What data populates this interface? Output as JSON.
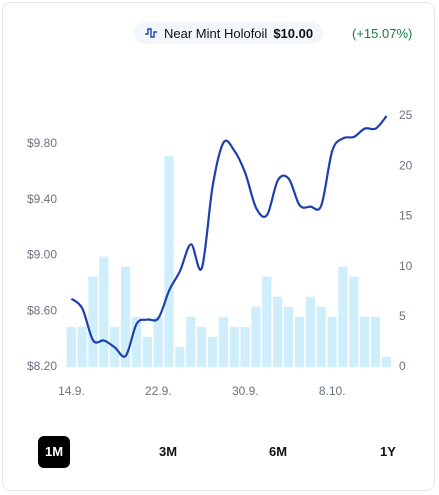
{
  "chart_data": {
    "type": "bar-line",
    "title": "Near Mint Holofoil",
    "price_label": "$10.00",
    "change_label": "(+15.07%)",
    "categories": [
      "14.9.",
      null,
      null,
      null,
      null,
      null,
      null,
      null,
      "22.9.",
      null,
      null,
      null,
      null,
      null,
      null,
      null,
      "30.9.",
      null,
      null,
      null,
      null,
      null,
      null,
      null,
      "8.10.",
      null,
      null,
      null,
      null,
      null
    ],
    "series": [
      {
        "name": "Near Mint Holofoil",
        "type": "line",
        "color": "#1e40af",
        "values": [
          8.69,
          8.62,
          8.39,
          8.39,
          8.34,
          8.28,
          8.51,
          8.54,
          8.55,
          8.75,
          8.89,
          9.08,
          8.91,
          9.5,
          9.81,
          9.75,
          9.59,
          9.34,
          9.29,
          9.54,
          9.55,
          9.36,
          9.35,
          9.36,
          9.75,
          9.84,
          9.85,
          9.91,
          9.91,
          10.0
        ]
      },
      {
        "type": "bar",
        "axis": "y2",
        "color": "#cfeefc",
        "values": [
          4,
          4,
          9,
          11,
          4,
          10,
          5,
          3,
          5,
          21,
          2,
          5,
          4,
          3,
          5,
          4,
          4,
          6,
          9,
          7,
          6,
          5,
          7,
          6,
          5,
          10,
          9,
          5,
          5,
          1
        ]
      }
    ],
    "ylim": [
      8.2,
      10.0
    ],
    "yticks": [
      {
        "value": 8.2,
        "label": "$8.20"
      },
      {
        "value": 8.6,
        "label": "$8.60"
      },
      {
        "value": 9.0,
        "label": "$9.00"
      },
      {
        "value": 9.4,
        "label": "$9.40"
      },
      {
        "value": 9.8,
        "label": "$9.80"
      }
    ],
    "y2lim": [
      0,
      25
    ],
    "y2ticks": [
      0,
      5,
      10,
      15,
      20,
      25
    ]
  },
  "buttons": [
    "1M",
    "3M",
    "6M",
    "1Y"
  ],
  "selected_button": "1M"
}
